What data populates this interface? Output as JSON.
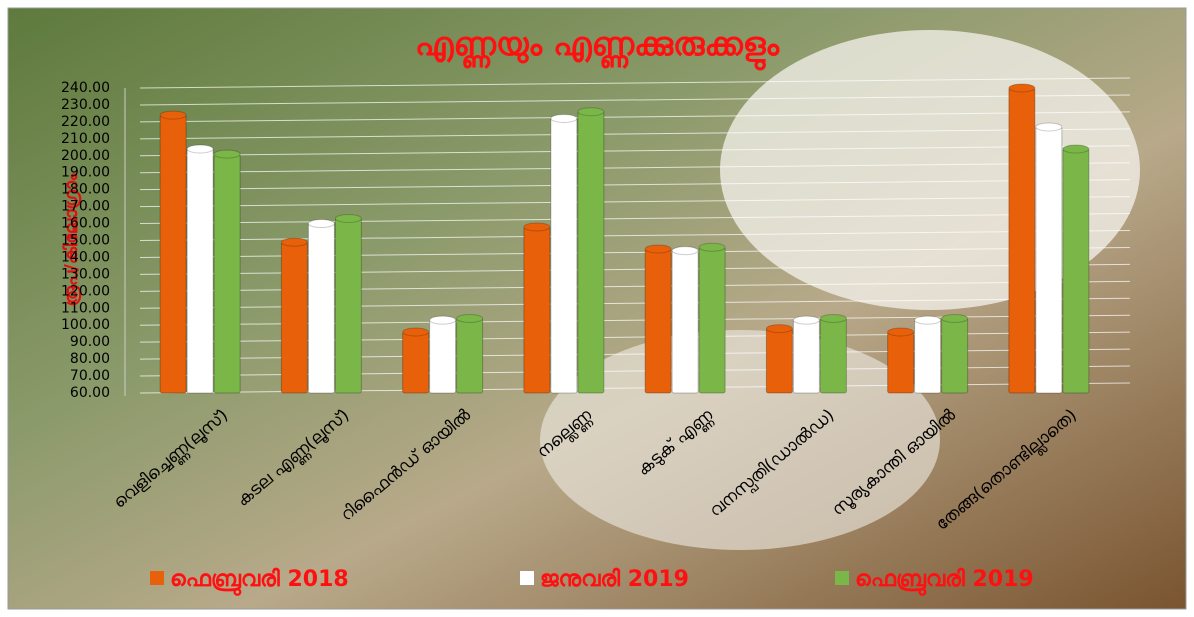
{
  "chart_data": {
    "type": "bar",
    "title": "എണ്ണയും എണ്ണക്കുരുക്കളും",
    "y_label": "രൂപ/കിലോഗ്രാം",
    "categories": [
      "വെളിച്ചെണ്ണ(ലൂസ്)",
      "കടല എണ്ണ(ലൂസ്)",
      "റിഫൈൻഡ് ഓയിൽ",
      "നല്ലെണ്ണ",
      "കടുക് എണ്ണ",
      "വനസ്പതി(ഡാൽഡ)",
      "സൂര്യകാന്തി ഓയിൽ",
      "തേങ്ങ(തൊണ്ടില്ലാതെ)"
    ],
    "series": [
      {
        "name": "ഫെബ്രുവരി 2018",
        "color": "#e8600a",
        "values": [
          224,
          149,
          96,
          158,
          145,
          98,
          96,
          240
        ]
      },
      {
        "name": "ജനുവരി 2019",
        "color": "#ffffff",
        "values": [
          204,
          160,
          103,
          222,
          144,
          103,
          103,
          217
        ]
      },
      {
        "name": "ഫെബ്രുവരി 2019",
        "color": "#7ab648",
        "values": [
          201,
          163,
          104,
          226,
          146,
          104,
          104,
          204
        ]
      }
    ],
    "ylim": [
      60,
      240
    ],
    "yticks": [
      {
        "value": 60,
        "label": "60.00"
      },
      {
        "value": 70,
        "label": "70.00"
      },
      {
        "value": 80,
        "label": "80.00"
      },
      {
        "value": 90,
        "label": "90.00"
      },
      {
        "value": 100,
        "label": "100.00"
      },
      {
        "value": 110,
        "label": "110.00"
      },
      {
        "value": 120,
        "label": "120.00"
      },
      {
        "value": 130,
        "label": "130.00"
      },
      {
        "value": 140,
        "label": "140.00"
      },
      {
        "value": 150,
        "label": "150.00"
      },
      {
        "value": 160,
        "label": "160.00"
      },
      {
        "value": 170,
        "label": "170.00"
      },
      {
        "value": 180,
        "label": "180.00"
      },
      {
        "value": 190,
        "label": "190.00"
      },
      {
        "value": 200,
        "label": "200.00"
      },
      {
        "value": 210,
        "label": "210.00"
      },
      {
        "value": 220,
        "label": "220.00"
      },
      {
        "value": 230,
        "label": "230.00"
      },
      {
        "value": 240,
        "label": "240.00"
      }
    ],
    "grid": true
  }
}
